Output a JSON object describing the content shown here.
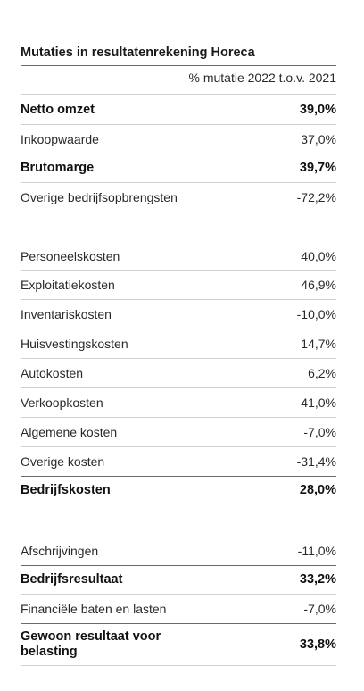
{
  "title": "Mutaties in resultatenrekening Horeca",
  "column_header": "% mutatie 2022 t.o.v. 2021",
  "rows": [
    {
      "label": "Netto omzet",
      "value": "39,0%"
    },
    {
      "label": "Inkoopwaarde",
      "value": "37,0%"
    },
    {
      "label": "Brutomarge",
      "value": "39,7%"
    },
    {
      "label": "Overige bedrijfsopbrengsten",
      "value": "-72,2%"
    },
    {
      "label": "Personeelskosten",
      "value": "40,0%"
    },
    {
      "label": "Exploitatiekosten",
      "value": "46,9%"
    },
    {
      "label": "Inventariskosten",
      "value": "-10,0%"
    },
    {
      "label": "Huisvestingskosten",
      "value": "14,7%"
    },
    {
      "label": "Autokosten",
      "value": "6,2%"
    },
    {
      "label": "Verkoopkosten",
      "value": "41,0%"
    },
    {
      "label": "Algemene kosten",
      "value": "-7,0%"
    },
    {
      "label": "Overige kosten",
      "value": "-31,4%"
    },
    {
      "label": "Bedrijfskosten",
      "value": "28,0%"
    },
    {
      "label": "Afschrijvingen",
      "value": "-11,0%"
    },
    {
      "label": "Bedrijfsresultaat",
      "value": "33,2%"
    },
    {
      "label": "Financiële baten en lasten",
      "value": "-7,0%"
    },
    {
      "label": "Gewoon resultaat voor belasting",
      "value": "33,8%"
    }
  ]
}
